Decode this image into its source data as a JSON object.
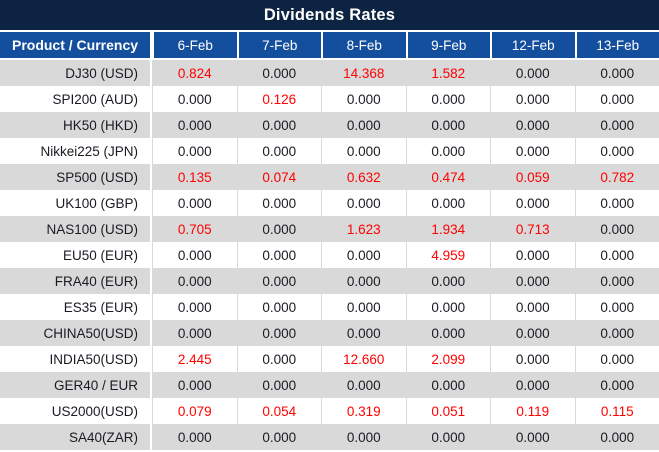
{
  "title": "Dividends Rates",
  "table": {
    "product_header": "Product / Currency",
    "date_headers": [
      "6-Feb",
      "7-Feb",
      "8-Feb",
      "9-Feb",
      "12-Feb",
      "13-Feb"
    ],
    "rows": [
      {
        "product": "DJ30 (USD)",
        "values": [
          "0.824",
          "0.000",
          "14.368",
          "1.582",
          "0.000",
          "0.000"
        ]
      },
      {
        "product": "SPI200 (AUD)",
        "values": [
          "0.000",
          "0.126",
          "0.000",
          "0.000",
          "0.000",
          "0.000"
        ]
      },
      {
        "product": "HK50 (HKD)",
        "values": [
          "0.000",
          "0.000",
          "0.000",
          "0.000",
          "0.000",
          "0.000"
        ]
      },
      {
        "product": "Nikkei225 (JPN)",
        "values": [
          "0.000",
          "0.000",
          "0.000",
          "0.000",
          "0.000",
          "0.000"
        ]
      },
      {
        "product": "SP500 (USD)",
        "values": [
          "0.135",
          "0.074",
          "0.632",
          "0.474",
          "0.059",
          "0.782"
        ]
      },
      {
        "product": "UK100 (GBP)",
        "values": [
          "0.000",
          "0.000",
          "0.000",
          "0.000",
          "0.000",
          "0.000"
        ]
      },
      {
        "product": "NAS100 (USD)",
        "values": [
          "0.705",
          "0.000",
          "1.623",
          "1.934",
          "0.713",
          "0.000"
        ]
      },
      {
        "product": "EU50 (EUR)",
        "values": [
          "0.000",
          "0.000",
          "0.000",
          "4.959",
          "0.000",
          "0.000"
        ]
      },
      {
        "product": "FRA40 (EUR)",
        "values": [
          "0.000",
          "0.000",
          "0.000",
          "0.000",
          "0.000",
          "0.000"
        ]
      },
      {
        "product": "ES35 (EUR)",
        "values": [
          "0.000",
          "0.000",
          "0.000",
          "0.000",
          "0.000",
          "0.000"
        ]
      },
      {
        "product": "CHINA50(USD)",
        "values": [
          "0.000",
          "0.000",
          "0.000",
          "0.000",
          "0.000",
          "0.000"
        ]
      },
      {
        "product": "INDIA50(USD)",
        "values": [
          "2.445",
          "0.000",
          "12.660",
          "2.099",
          "0.000",
          "0.000"
        ]
      },
      {
        "product": "GER40 / EUR",
        "values": [
          "0.000",
          "0.000",
          "0.000",
          "0.000",
          "0.000",
          "0.000"
        ]
      },
      {
        "product": "US2000(USD)",
        "values": [
          "0.079",
          "0.054",
          "0.319",
          "0.051",
          "0.119",
          "0.115"
        ]
      },
      {
        "product": "SA40(ZAR)",
        "values": [
          "0.000",
          "0.000",
          "0.000",
          "0.000",
          "0.000",
          "0.000"
        ]
      }
    ]
  },
  "colors": {
    "title_bar_bg": "#0d2342",
    "header_bg": "#144f9e",
    "header_text": "#ffffff",
    "row_bg": "#ffffff",
    "row_alt_bg": "#d9d9d9",
    "text_dark": "#1a1a22",
    "nonzero_value": "#ff0000"
  }
}
